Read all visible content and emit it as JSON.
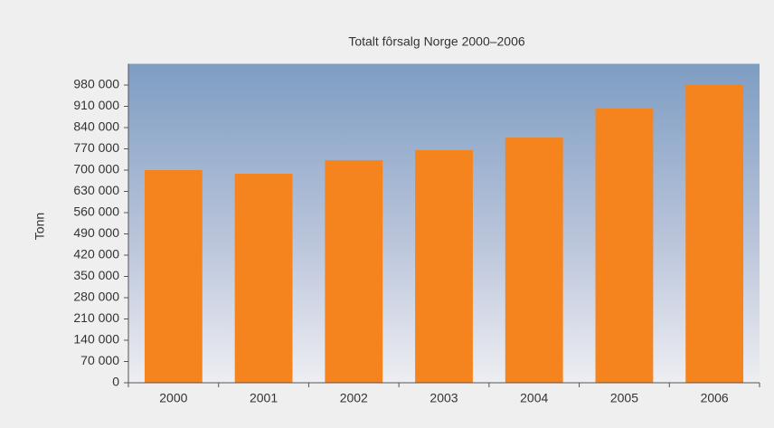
{
  "chart_data": {
    "type": "bar",
    "title": "Totalt fôrsalg Norge 2000–2006",
    "ylabel": "Tonn",
    "categories": [
      "2000",
      "2001",
      "2002",
      "2003",
      "2004",
      "2005",
      "2006"
    ],
    "values": [
      700000,
      688000,
      733000,
      766000,
      807000,
      903000,
      983000
    ],
    "color": "#f5841f",
    "ylim": [
      0,
      1050000
    ],
    "yticks": [
      0,
      {
        "value": 70000,
        "label": "70 000"
      },
      {
        "value": 140000,
        "label": "140 000"
      },
      {
        "value": 210000,
        "label": "210 000"
      },
      {
        "value": 280000,
        "label": "280 000"
      },
      {
        "value": 350000,
        "label": "350 000"
      },
      {
        "value": 420000,
        "label": "420 000"
      },
      {
        "value": 490000,
        "label": "490 000"
      },
      {
        "value": 560000,
        "label": "560 000"
      },
      {
        "value": 630000,
        "label": "630 000"
      },
      {
        "value": 700000,
        "label": "700 000"
      },
      {
        "value": 770000,
        "label": "770 000"
      },
      {
        "value": 840000,
        "label": "840 000"
      },
      {
        "value": 910000,
        "label": "910 000"
      },
      {
        "value": 980000,
        "label": "980 000"
      }
    ]
  }
}
